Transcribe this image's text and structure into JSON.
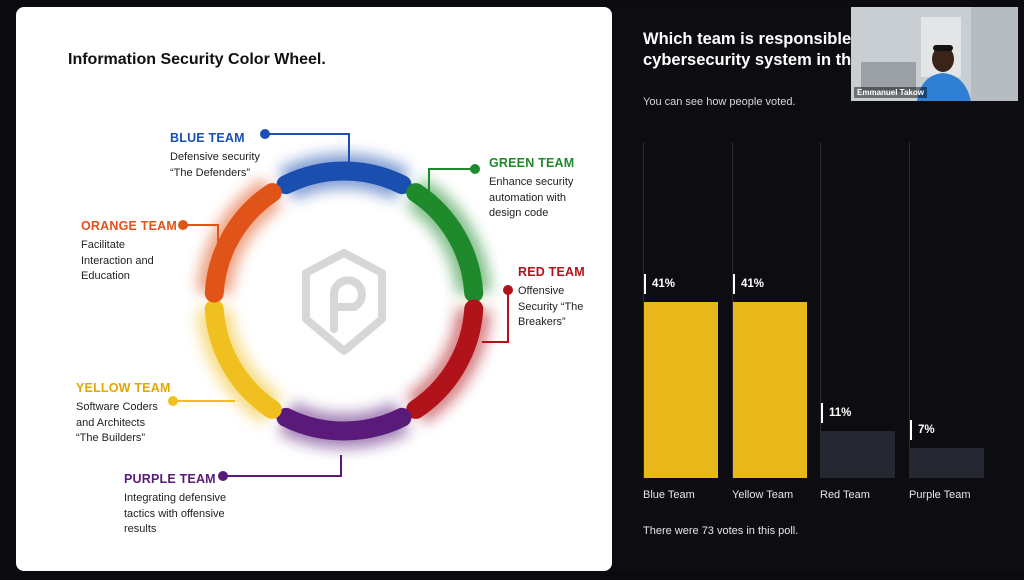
{
  "slide": {
    "title": "Information Security Color Wheel.",
    "teams": [
      {
        "id": "blue",
        "label": "BLUE TEAM",
        "desc": "Defensive security\n“The Defenders”",
        "color": "#1a4fb0"
      },
      {
        "id": "green",
        "label": "GREEN TEAM",
        "desc": "Enhance security\nautomation with\ndesign code",
        "color": "#1f8a2c"
      },
      {
        "id": "red",
        "label": "RED TEAM",
        "desc": "Offensive\nSecurity “The\nBreakers”",
        "color": "#b0141a"
      },
      {
        "id": "purple",
        "label": "PURPLE TEAM",
        "desc": "Integrating defensive\ntactics with offensive\nresults",
        "color": "#5a1a7a"
      },
      {
        "id": "yellow",
        "label": "YELLOW TEAM",
        "desc": "Software Coders\nand Architects\n“The Builders”",
        "color": "#f0c020"
      },
      {
        "id": "orange",
        "label": "ORANGE TEAM",
        "desc": "Facilitate\nInteraction and\nEducation",
        "color": "#e0541a"
      }
    ]
  },
  "poll": {
    "question_part1": "Which team is responsible for the cybersecurity system in the organization",
    "question_mark": "?",
    "subtitle": "You can see how people voted.",
    "footer": "There were 73 votes in this poll.",
    "colors": {
      "leading": "#e8b71a",
      "other": "#252830"
    }
  },
  "chart_data": {
    "type": "bar",
    "categories": [
      "Blue Team",
      "Yellow Team",
      "Red Team",
      "Purple Team"
    ],
    "values": [
      41,
      41,
      11,
      7
    ],
    "value_labels": [
      "41%",
      "41%",
      "11%",
      "7%"
    ],
    "ylim": [
      0,
      100
    ]
  },
  "video": {
    "participant_name": "Emmanuel Takow"
  }
}
